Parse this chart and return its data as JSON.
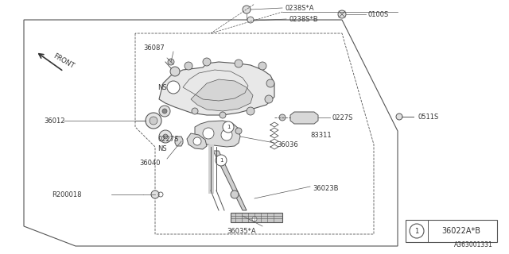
{
  "bg_color": "#ffffff",
  "line_color": "#555555",
  "text_color": "#333333",
  "fig_width": 6.4,
  "fig_height": 3.2,
  "dpi": 100,
  "footer_diagram_id": "A363001331",
  "legend_symbol": "1",
  "legend_part": "36022A*B"
}
